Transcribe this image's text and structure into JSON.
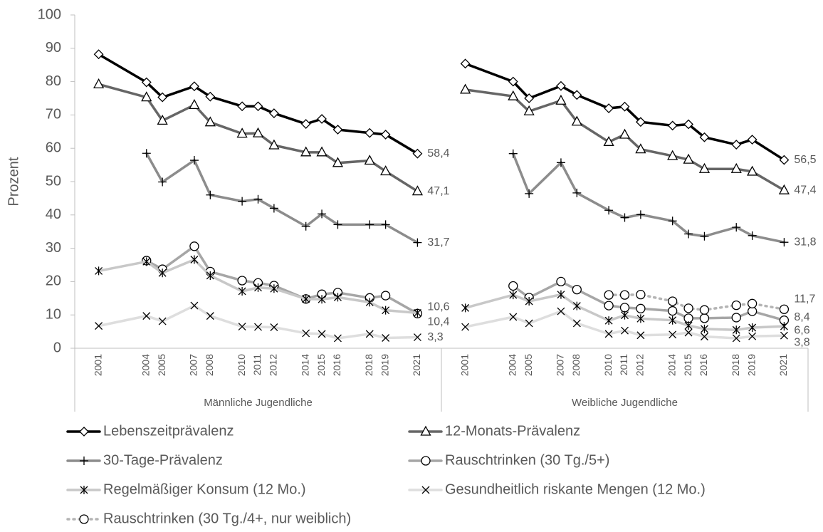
{
  "chart_data": {
    "type": "line",
    "y_label": "Prozent",
    "ylim": [
      0,
      100
    ],
    "yticks": [
      0,
      10,
      20,
      30,
      40,
      50,
      60,
      70,
      80,
      90,
      100
    ],
    "xlim": [
      1999.5,
      2022.5
    ],
    "panels": [
      {
        "label": "Männliche Jugendliche",
        "x": [
          2001,
          2004,
          2005,
          2007,
          2008,
          2010,
          2011,
          2012,
          2014,
          2015,
          2016,
          2018,
          2019,
          2021
        ]
      },
      {
        "label": "Weibliche Jugendliche",
        "x": [
          2001,
          2004,
          2005,
          2007,
          2008,
          2010,
          2011,
          2012,
          2014,
          2015,
          2016,
          2018,
          2019,
          2021
        ]
      }
    ],
    "series": [
      {
        "name": "Lebenszeitprävalenz",
        "color": "#000000",
        "marker": "diamond",
        "dash": false,
        "values": [
          [
            88.2,
            79.8,
            75.3,
            78.6,
            75.5,
            72.6,
            72.6,
            70.5,
            67.3,
            68.8,
            65.6,
            64.6,
            64.1,
            58.4
          ],
          [
            85.4,
            80.0,
            75.0,
            78.7,
            76.0,
            72.0,
            72.5,
            67.9,
            66.8,
            67.2,
            63.3,
            61.1,
            62.6,
            56.5
          ]
        ],
        "value_labels": [
          [
            null,
            null,
            null,
            null,
            null,
            null,
            null,
            null,
            null,
            null,
            null,
            null,
            null,
            "58,4"
          ],
          [
            null,
            null,
            null,
            null,
            null,
            null,
            null,
            null,
            null,
            null,
            null,
            null,
            null,
            "56,5"
          ]
        ]
      },
      {
        "name": "12-Monats-Prävalenz",
        "color": "#666666",
        "marker": "triangle",
        "dash": false,
        "values": [
          [
            79.2,
            75.3,
            68.3,
            73.0,
            67.8,
            64.4,
            64.5,
            60.9,
            58.8,
            58.8,
            55.6,
            56.3,
            53.1,
            47.1
          ],
          [
            77.6,
            75.6,
            71.1,
            74.3,
            68.0,
            61.9,
            64.1,
            59.7,
            57.7,
            56.6,
            53.8,
            53.8,
            53.0,
            47.4
          ]
        ],
        "value_labels": [
          [
            null,
            null,
            null,
            null,
            null,
            null,
            null,
            null,
            null,
            null,
            null,
            null,
            null,
            "47,1"
          ],
          [
            null,
            null,
            null,
            null,
            null,
            null,
            null,
            null,
            null,
            null,
            null,
            null,
            null,
            "47,4"
          ]
        ]
      },
      {
        "name": "30-Tage-Prävalenz",
        "color": "#8c8c8c",
        "marker": "plus",
        "dash": false,
        "values": [
          [
            null,
            58.5,
            49.9,
            56.4,
            46.0,
            44.1,
            44.7,
            42.0,
            36.6,
            40.3,
            37.1,
            37.1,
            37.1,
            31.7
          ],
          [
            null,
            58.4,
            46.4,
            55.7,
            46.6,
            41.4,
            39.2,
            40.1,
            38.2,
            34.3,
            33.6,
            36.3,
            33.8,
            31.8
          ]
        ],
        "value_labels": [
          [
            null,
            null,
            null,
            null,
            null,
            null,
            null,
            null,
            null,
            null,
            null,
            null,
            null,
            "31,7"
          ],
          [
            null,
            null,
            null,
            null,
            null,
            null,
            null,
            null,
            null,
            null,
            null,
            null,
            null,
            "31,8"
          ]
        ]
      },
      {
        "name": "Rauschtrinken (30 Tg./5+)",
        "color": "#a6a6a6",
        "marker": "circle",
        "dash": false,
        "values": [
          [
            null,
            26.3,
            23.7,
            30.6,
            23.0,
            20.3,
            19.6,
            18.8,
            14.8,
            16.2,
            16.7,
            15.1,
            15.8,
            10.4
          ],
          [
            null,
            18.7,
            15.2,
            20.0,
            17.6,
            12.8,
            12.2,
            11.9,
            11.2,
            9.0,
            9.0,
            9.2,
            11.1,
            8.4
          ]
        ],
        "value_labels": [
          [
            null,
            null,
            null,
            null,
            null,
            null,
            null,
            null,
            null,
            null,
            null,
            null,
            null,
            "10,4"
          ],
          [
            null,
            null,
            null,
            null,
            null,
            null,
            null,
            null,
            null,
            null,
            null,
            null,
            null,
            "8,4"
          ]
        ]
      },
      {
        "name": "Regelmäßiger Konsum (12 Mo.)",
        "color": "#c8c8c8",
        "marker": "asterisk",
        "dash": false,
        "values": [
          [
            23.2,
            26.0,
            22.6,
            26.6,
            21.8,
            17.1,
            18.2,
            17.9,
            14.8,
            14.7,
            15.3,
            13.8,
            11.4,
            10.6
          ],
          [
            12.1,
            16.0,
            14.1,
            16.1,
            12.7,
            8.3,
            9.9,
            8.9,
            8.4,
            6.8,
            5.8,
            5.5,
            6.2,
            6.6
          ]
        ],
        "value_labels": [
          [
            null,
            null,
            null,
            null,
            null,
            null,
            null,
            null,
            null,
            null,
            null,
            null,
            null,
            "10,6"
          ],
          [
            null,
            null,
            null,
            null,
            null,
            null,
            null,
            null,
            null,
            null,
            null,
            null,
            null,
            "6,6"
          ]
        ]
      },
      {
        "name": "Gesundheitlich riskante Mengen (12 Mo.)",
        "color": "#dedede",
        "marker": "x",
        "dash": false,
        "values": [
          [
            6.7,
            9.7,
            8.1,
            12.8,
            9.7,
            6.5,
            6.4,
            6.3,
            4.5,
            4.3,
            3.0,
            4.3,
            3.1,
            3.3
          ],
          [
            6.4,
            9.4,
            7.5,
            11.1,
            7.5,
            4.3,
            5.3,
            3.9,
            4.1,
            4.7,
            3.5,
            3.0,
            3.6,
            3.8
          ]
        ],
        "value_labels": [
          [
            null,
            null,
            null,
            null,
            null,
            null,
            null,
            null,
            null,
            null,
            null,
            null,
            null,
            "3,3"
          ],
          [
            null,
            null,
            null,
            null,
            null,
            null,
            null,
            null,
            null,
            null,
            null,
            null,
            null,
            "3,8"
          ]
        ]
      },
      {
        "name": "Rauschtrinken (30 Tg./4+, nur weiblich)",
        "color": "#b4b4b4",
        "marker": "circle",
        "dash": true,
        "values": [
          [
            null,
            null,
            null,
            null,
            null,
            null,
            null,
            null,
            null,
            null,
            null,
            null,
            null,
            null
          ],
          [
            null,
            null,
            null,
            null,
            null,
            16.0,
            16.0,
            16.1,
            14.1,
            12.0,
            11.5,
            12.9,
            13.4,
            11.7
          ]
        ],
        "value_labels": [
          [
            null,
            null,
            null,
            null,
            null,
            null,
            null,
            null,
            null,
            null,
            null,
            null,
            null,
            null
          ],
          [
            null,
            null,
            null,
            null,
            null,
            null,
            null,
            null,
            null,
            null,
            null,
            null,
            null,
            "11,7"
          ]
        ]
      }
    ]
  }
}
